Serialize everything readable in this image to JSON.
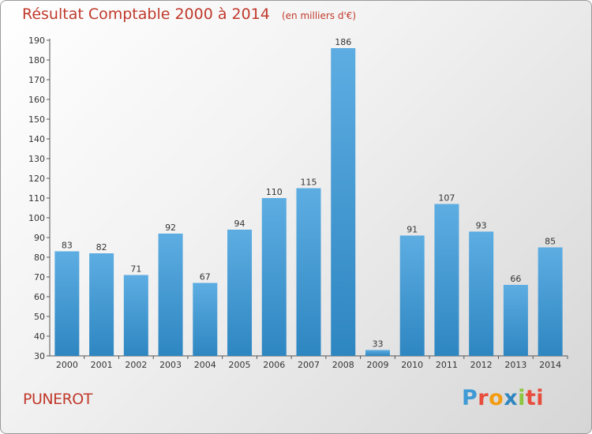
{
  "title": "Résultat Comptable 2000 à 2014",
  "subtitle": "(en milliers d'€)",
  "town": "PUNEROT",
  "logo_text": "Proxiti",
  "colors": {
    "title": "#c0392b",
    "bar_light": "#5dade2",
    "bar_dark": "#2e86c1",
    "town": "#c0392b"
  },
  "chart_data": {
    "type": "bar",
    "title": "Résultat Comptable 2000 à 2014",
    "subtitle": "(en milliers d'€)",
    "xlabel": "",
    "ylabel": "",
    "categories": [
      "2000",
      "2001",
      "2002",
      "2003",
      "2004",
      "2005",
      "2006",
      "2007",
      "2008",
      "2009",
      "2010",
      "2011",
      "2012",
      "2013",
      "2014"
    ],
    "values": [
      83,
      82,
      71,
      92,
      67,
      94,
      110,
      115,
      186,
      33,
      91,
      107,
      93,
      66,
      85
    ],
    "ylim": [
      30,
      190
    ],
    "yticks": [
      30,
      40,
      50,
      60,
      70,
      80,
      90,
      100,
      110,
      120,
      130,
      140,
      150,
      160,
      170,
      180,
      190
    ],
    "grid": false,
    "legend": "none"
  }
}
